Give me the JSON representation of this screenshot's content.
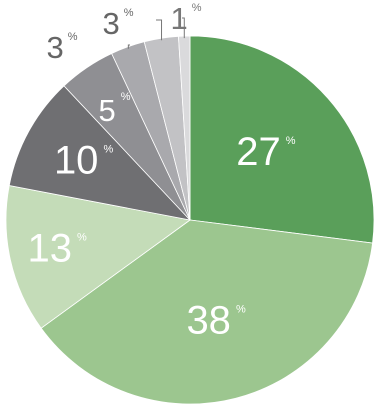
{
  "chart_data": {
    "type": "pie",
    "title": "",
    "start": "12 o'clock",
    "direction": "clockwise",
    "slices": [
      {
        "value": 27,
        "label": "27",
        "unit": "%",
        "color": "#5a9f5a",
        "text_color": "#ffffff"
      },
      {
        "value": 38,
        "label": "38",
        "unit": "%",
        "color": "#9cc68f",
        "text_color": "#ffffff"
      },
      {
        "value": 13,
        "label": "13",
        "unit": "%",
        "color": "#c4dcb8",
        "text_color": "#ffffff"
      },
      {
        "value": 10,
        "label": "10",
        "unit": "%",
        "color": "#6f6f72",
        "text_color": "#ffffff"
      },
      {
        "value": 5,
        "label": "5",
        "unit": "%",
        "color": "#8f8f93",
        "text_color": "#ffffff"
      },
      {
        "value": 3,
        "label": "3",
        "unit": "%",
        "color": "#a9a9ad",
        "text_color": "#666666",
        "callout": true
      },
      {
        "value": 3,
        "label": "3",
        "unit": "%",
        "color": "#c2c2c5",
        "text_color": "#666666",
        "callout": true
      },
      {
        "value": 1,
        "label": "1",
        "unit": "%",
        "color": "#dadadc",
        "text_color": "#777777",
        "callout": true
      }
    ]
  }
}
